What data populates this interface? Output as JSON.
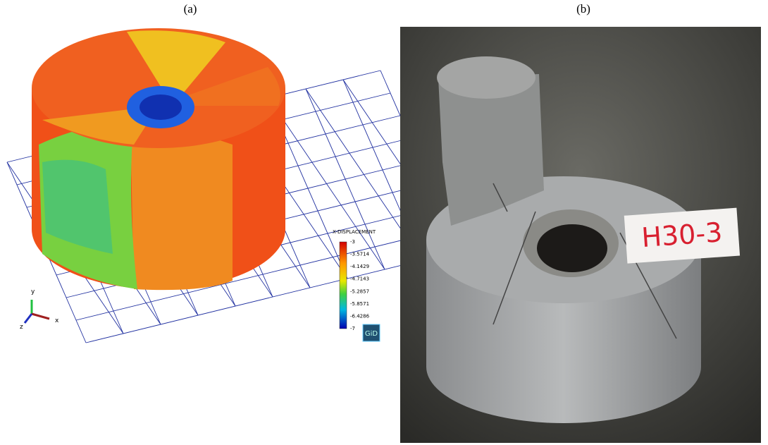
{
  "panels": [
    {
      "label": "(a)",
      "legend": {
        "title": "X-DISPLACEMENT",
        "labels": [
          "-3",
          "-3.5714",
          "-4.1429",
          "-4.7143",
          "-5.2857",
          "-5.8571",
          "-6.4286",
          "-7"
        ]
      },
      "axes": {
        "y": "y",
        "z": "z",
        "x": "x"
      },
      "logo": "GiD"
    },
    {
      "label": "(b)",
      "tag": "H30-3"
    }
  ]
}
